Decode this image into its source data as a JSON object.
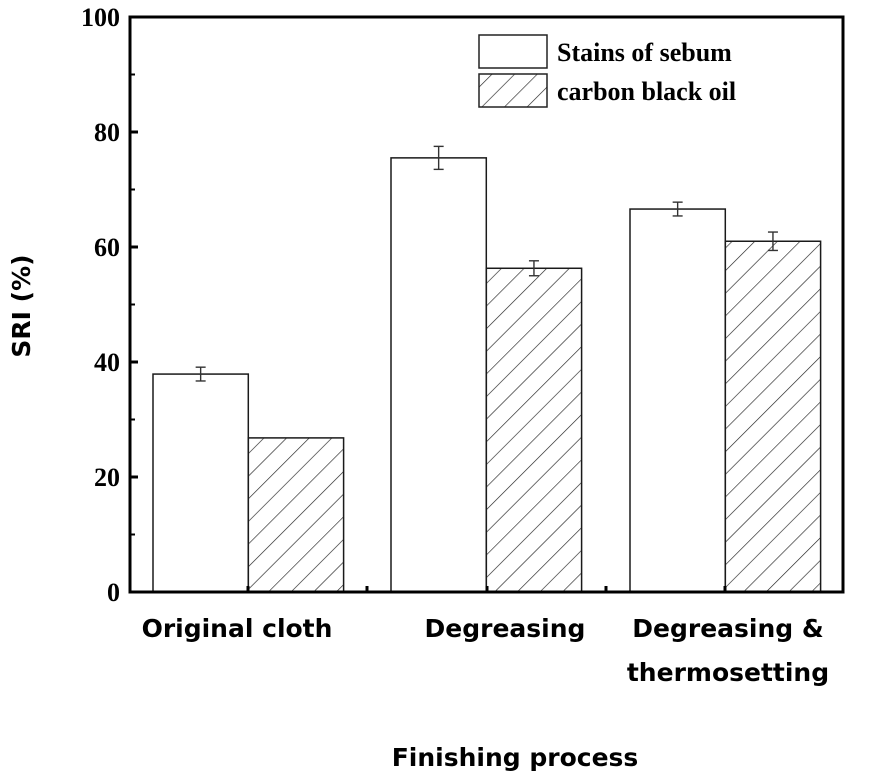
{
  "chart_data": {
    "type": "bar",
    "title": "",
    "xlabel": "Finishing process",
    "ylabel": "SRI (%)",
    "ylim": [
      0,
      100
    ],
    "yticks": [
      0,
      20,
      40,
      60,
      80,
      100
    ],
    "grid": false,
    "legend_position": "upper right",
    "categories": [
      [
        "Original cloth"
      ],
      [
        "Degreasing"
      ],
      [
        "Degreasing &",
        "thermosetting"
      ]
    ],
    "series": [
      {
        "name": "Stains of sebum",
        "fill": "none",
        "values": [
          37.9,
          75.5,
          66.6
        ],
        "errors": [
          1.2,
          2.0,
          1.2
        ]
      },
      {
        "name": "carbon black oil",
        "fill": "hatch",
        "values": [
          26.8,
          56.3,
          61.0
        ],
        "errors": [
          0,
          1.3,
          1.6
        ]
      }
    ]
  },
  "colors": {
    "axis": "#000000",
    "bar_stroke": "#1a1a1a",
    "error_bar": "#333333",
    "hatch": "#222222"
  }
}
